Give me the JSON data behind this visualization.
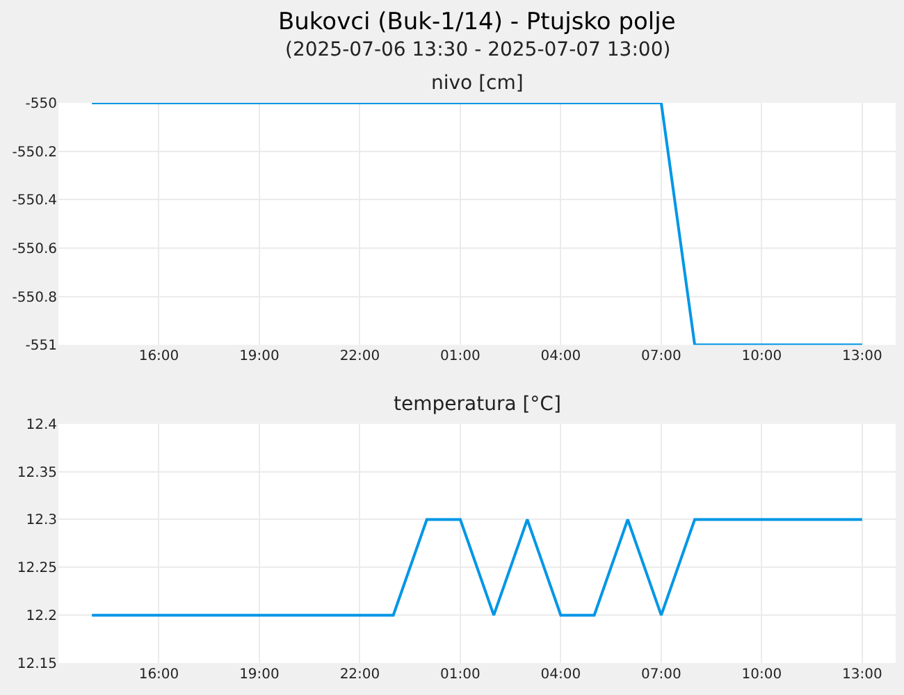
{
  "chart_data": [
    {
      "type": "line",
      "title": "Bukovci (Buk-1/14) - Ptujsko polje",
      "subtitle": "(2025-07-06 13:30 - 2025-07-07 13:00)",
      "annotations": [
        "nivo [cm]"
      ],
      "series": [
        {
          "color": "#0096e6",
          "x": [
            "2025-07-06T14:00",
            "2025-07-07T07:00",
            "2025-07-07T08:00",
            "2025-07-07T13:00"
          ],
          "values": [
            -550,
            -550,
            -551,
            -551
          ]
        }
      ],
      "xlim": [
        "2025-07-06T13:00",
        "2025-07-07T14:00"
      ],
      "xticks": [
        {
          "value": "2025-07-06T16:00",
          "label": "16:00"
        },
        {
          "value": "2025-07-06T19:00",
          "label": "19:00"
        },
        {
          "value": "2025-07-06T22:00",
          "label": "22:00"
        },
        {
          "value": "2025-07-07T01:00",
          "label": "01:00"
        },
        {
          "value": "2025-07-07T04:00",
          "label": "04:00"
        },
        {
          "value": "2025-07-07T07:00",
          "label": "07:00"
        },
        {
          "value": "2025-07-07T10:00",
          "label": "10:00"
        },
        {
          "value": "2025-07-07T13:00",
          "label": "13:00"
        }
      ],
      "ylim": [
        -551,
        -550
      ],
      "yticks": [
        -551,
        -550.8,
        -550.6,
        -550.4,
        -550.2,
        -550
      ],
      "grid": true
    },
    {
      "type": "line",
      "title": "temperatura [°C]",
      "series": [
        {
          "color": "#0096e6",
          "x": [
            "2025-07-06T14:00",
            "2025-07-06T23:00",
            "2025-07-07T00:00",
            "2025-07-07T01:00",
            "2025-07-07T02:00",
            "2025-07-07T03:00",
            "2025-07-07T04:00",
            "2025-07-07T05:00",
            "2025-07-07T06:00",
            "2025-07-07T07:00",
            "2025-07-07T08:00",
            "2025-07-07T13:00"
          ],
          "values": [
            12.2,
            12.2,
            12.3,
            12.3,
            12.2,
            12.3,
            12.2,
            12.2,
            12.3,
            12.2,
            12.3,
            12.3
          ]
        }
      ],
      "xlim": [
        "2025-07-06T13:00",
        "2025-07-07T14:00"
      ],
      "xticks": [
        {
          "value": "2025-07-06T16:00",
          "label": "16:00"
        },
        {
          "value": "2025-07-06T19:00",
          "label": "19:00"
        },
        {
          "value": "2025-07-06T22:00",
          "label": "22:00"
        },
        {
          "value": "2025-07-07T01:00",
          "label": "01:00"
        },
        {
          "value": "2025-07-07T04:00",
          "label": "04:00"
        },
        {
          "value": "2025-07-07T07:00",
          "label": "07:00"
        },
        {
          "value": "2025-07-07T10:00",
          "label": "10:00"
        },
        {
          "value": "2025-07-07T13:00",
          "label": "13:00"
        }
      ],
      "ylim": [
        12.15,
        12.4
      ],
      "yticks": [
        12.15,
        12.2,
        12.25,
        12.3,
        12.35,
        12.4
      ],
      "grid": true
    }
  ]
}
